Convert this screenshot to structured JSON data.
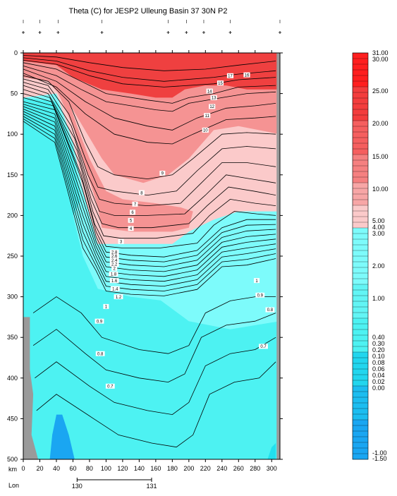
{
  "chart_data": {
    "type": "heatmap",
    "title": "Theta (C) for JESP2 Ulleung Basin 37 30N P2",
    "xlabel": "km",
    "x_axis": {
      "range": [
        0,
        310
      ],
      "ticks": [
        0,
        20,
        40,
        60,
        80,
        100,
        120,
        140,
        160,
        180,
        200,
        220,
        240,
        260,
        280,
        300
      ],
      "tick_labels": [
        "0",
        "20",
        "40",
        "60",
        "80",
        "100",
        "120",
        "140",
        "160",
        "180",
        "200",
        "220",
        "240",
        "260",
        "280",
        "300"
      ]
    },
    "y_axis": {
      "range": [
        0,
        500
      ],
      "inverted": true,
      "ticks": [
        0,
        50,
        100,
        150,
        200,
        250,
        300,
        350,
        400,
        450,
        500
      ],
      "tick_labels": [
        "0",
        "50",
        "100",
        "150",
        "200",
        "250",
        "300",
        "350",
        "400",
        "450",
        "500"
      ]
    },
    "lon_axis": {
      "label": "Lon",
      "ticks": [
        130,
        131
      ],
      "tick_labels": [
        "130",
        "131"
      ],
      "km_at_ticks": [
        65,
        155
      ]
    },
    "station_marks_km": [
      0,
      20,
      42,
      95,
      175,
      197,
      218,
      250,
      310
    ],
    "colorbar": {
      "labels": [
        "31.00",
        "30.00",
        "25.00",
        "20.00",
        "15.00",
        "10.00",
        "5.00",
        "4.00",
        "3.00",
        "2.00",
        "1.00",
        "0.40",
        "0.30",
        "0.20",
        "0.10",
        "0.08",
        "0.06",
        "0.04",
        "0.02",
        "0.00",
        "-1.00",
        "-1.50"
      ]
    },
    "contour_labels": [
      "17",
      "16",
      "15",
      "14",
      "13",
      "12",
      "11",
      "10",
      "9",
      "8",
      "7",
      "6",
      "5",
      "4",
      "3",
      "2.8",
      "2.6",
      "2.4",
      "2.2",
      "2",
      "1.8",
      "1.6",
      "1.4",
      "1.2",
      "1",
      "0.9",
      "0.8",
      "0.7",
      "1",
      "0.9",
      "0.8",
      "0.7"
    ],
    "colors": {
      "red_strong": "#ef4040",
      "red_mid": "#f59393",
      "pink": "#fbcaca",
      "cyan_light": "#7dfbfb",
      "cyan_mid": "#4df2f2",
      "cyan": "#22e0ee",
      "blue": "#1aa6f2",
      "land": "#9a9a9a"
    }
  }
}
